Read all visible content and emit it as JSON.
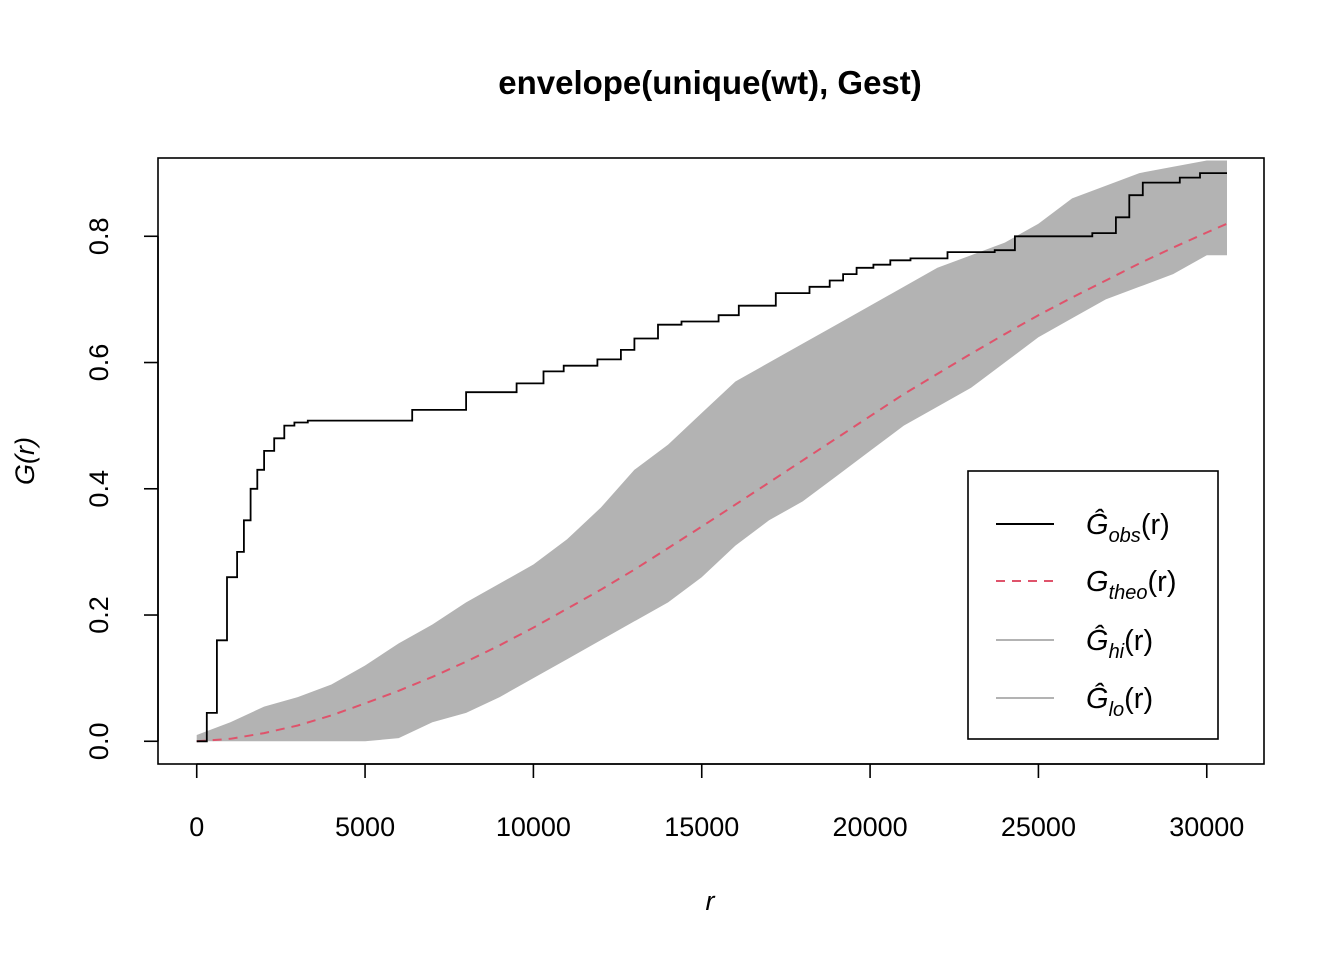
{
  "chart_data": {
    "type": "line",
    "title": "envelope(unique(wt), Gest)",
    "xlabel": "r",
    "ylabel": "G(r)",
    "xlim": [
      -1150,
      31700
    ],
    "ylim": [
      -0.036,
      0.924
    ],
    "x_ticks": [
      0,
      5000,
      10000,
      15000,
      20000,
      25000,
      30000
    ],
    "x_tick_labels": [
      "0",
      "5000",
      "10000",
      "15000",
      "20000",
      "25000",
      "30000"
    ],
    "y_ticks": [
      0.0,
      0.2,
      0.4,
      0.6,
      0.8
    ],
    "y_tick_labels": [
      "0.0",
      "0.2",
      "0.4",
      "0.6",
      "0.8"
    ],
    "grid": false,
    "legend_position": "bottom-right",
    "colors": {
      "obs": "#000000",
      "theo": "#DF536B",
      "envelope": "#B3B3B3"
    },
    "series": [
      {
        "name": "obs",
        "style": "step-solid",
        "x": [
          0,
          300,
          600,
          900,
          1200,
          1400,
          1600,
          1800,
          2000,
          2300,
          2600,
          2900,
          3300,
          5800,
          6400,
          8000,
          9500,
          10300,
          10900,
          11900,
          12600,
          13000,
          13700,
          14400,
          15500,
          16100,
          17200,
          18200,
          18800,
          19200,
          19600,
          20100,
          20600,
          21200,
          22300,
          23700,
          24300,
          25900,
          26600,
          27300,
          27700,
          28100,
          29200,
          29800,
          30600
        ],
        "y": [
          0.0,
          0.045,
          0.16,
          0.26,
          0.3,
          0.35,
          0.4,
          0.43,
          0.46,
          0.48,
          0.5,
          0.505,
          0.508,
          0.508,
          0.525,
          0.553,
          0.567,
          0.586,
          0.595,
          0.605,
          0.62,
          0.638,
          0.66,
          0.665,
          0.675,
          0.69,
          0.71,
          0.72,
          0.73,
          0.74,
          0.75,
          0.755,
          0.762,
          0.765,
          0.775,
          0.778,
          0.8,
          0.8,
          0.805,
          0.83,
          0.865,
          0.885,
          0.893,
          0.9,
          0.9
        ]
      },
      {
        "name": "theo",
        "style": "dashed",
        "x": [
          0,
          1000,
          2000,
          3000,
          4000,
          5000,
          6000,
          7000,
          8000,
          9000,
          10000,
          11000,
          12000,
          13000,
          14000,
          15000,
          16000,
          17000,
          18000,
          19000,
          20000,
          21000,
          22000,
          23000,
          24000,
          25000,
          26000,
          27000,
          28000,
          29000,
          30000,
          30600
        ],
        "y": [
          0.0,
          0.004,
          0.013,
          0.025,
          0.041,
          0.06,
          0.08,
          0.102,
          0.126,
          0.152,
          0.18,
          0.21,
          0.24,
          0.272,
          0.306,
          0.34,
          0.375,
          0.41,
          0.445,
          0.48,
          0.515,
          0.55,
          0.582,
          0.614,
          0.645,
          0.675,
          0.703,
          0.73,
          0.757,
          0.782,
          0.806,
          0.82
        ]
      },
      {
        "name": "hi",
        "style": "band-upper",
        "x": [
          0,
          1000,
          2000,
          3000,
          4000,
          5000,
          6000,
          7000,
          8000,
          9000,
          10000,
          11000,
          12000,
          13000,
          14000,
          15000,
          16000,
          17000,
          18000,
          19000,
          20000,
          21000,
          22000,
          23000,
          24000,
          25000,
          26000,
          27000,
          28000,
          29000,
          30000,
          30600
        ],
        "y": [
          0.01,
          0.03,
          0.055,
          0.07,
          0.09,
          0.12,
          0.155,
          0.185,
          0.22,
          0.25,
          0.28,
          0.32,
          0.37,
          0.43,
          0.47,
          0.52,
          0.57,
          0.6,
          0.63,
          0.66,
          0.69,
          0.72,
          0.75,
          0.77,
          0.79,
          0.82,
          0.86,
          0.88,
          0.9,
          0.91,
          0.92,
          0.92
        ]
      },
      {
        "name": "lo",
        "style": "band-lower",
        "x": [
          0,
          1000,
          2000,
          3000,
          4000,
          5000,
          6000,
          7000,
          8000,
          9000,
          10000,
          11000,
          12000,
          13000,
          14000,
          15000,
          16000,
          17000,
          18000,
          19000,
          20000,
          21000,
          22000,
          23000,
          24000,
          25000,
          26000,
          27000,
          28000,
          29000,
          30000,
          30600
        ],
        "y": [
          0.0,
          0.0,
          0.0,
          0.0,
          0.0,
          0.0,
          0.005,
          0.03,
          0.045,
          0.07,
          0.1,
          0.13,
          0.16,
          0.19,
          0.22,
          0.26,
          0.31,
          0.35,
          0.38,
          0.42,
          0.46,
          0.5,
          0.53,
          0.56,
          0.6,
          0.64,
          0.67,
          0.7,
          0.72,
          0.74,
          0.77,
          0.77
        ]
      }
    ]
  },
  "legend": [
    {
      "key": "obs",
      "sym": "Ĝ",
      "sub": "obs",
      "arg": "(r)"
    },
    {
      "key": "theo",
      "sym": "G",
      "sub": "theo",
      "arg": "(r)"
    },
    {
      "key": "hi",
      "sym": "Ĝ",
      "sub": "hi",
      "arg": "(r)"
    },
    {
      "key": "lo",
      "sym": "Ĝ",
      "sub": "lo",
      "arg": "(r)"
    }
  ]
}
